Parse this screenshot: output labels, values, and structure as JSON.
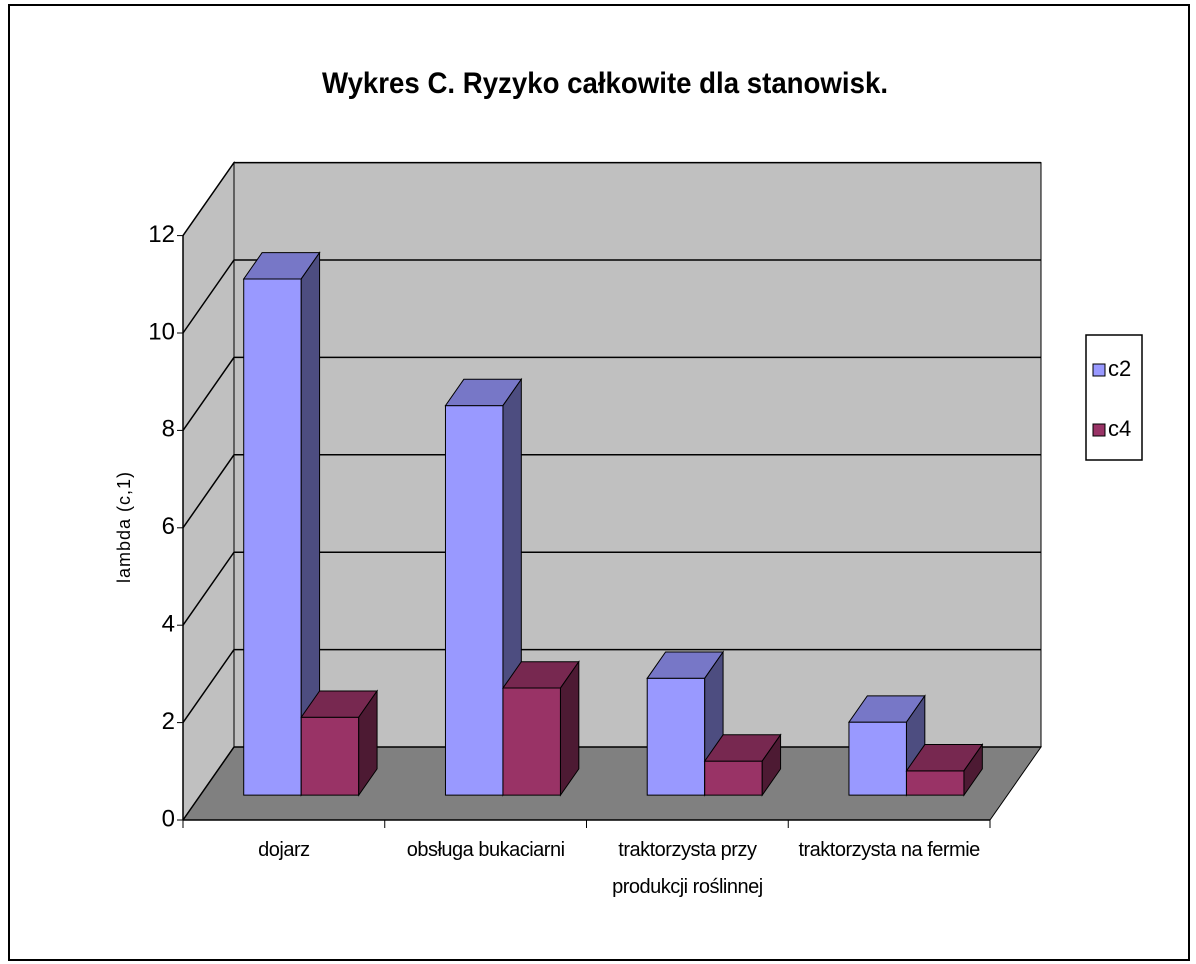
{
  "chart_data": {
    "type": "bar3d",
    "title": "Wykres C. Ryzyko całkowite dla stanowisk.",
    "y_label": "lambda (c,1)",
    "categories": [
      "dojarz",
      "obsługa bukaciarni",
      "traktorzysta przy produkcji roślinnej",
      "traktorzysta na fermie"
    ],
    "series": [
      {
        "name": "c2",
        "color": "#9999ff",
        "values": [
          10.6,
          8.0,
          2.4,
          1.5
        ]
      },
      {
        "name": "c4",
        "color": "#993366",
        "values": [
          1.6,
          2.2,
          0.7,
          0.5
        ]
      }
    ],
    "ylim": [
      0,
      12
    ],
    "yticks": [
      0,
      2,
      4,
      6,
      8,
      10,
      12
    ],
    "grid": true,
    "legend": "right"
  }
}
